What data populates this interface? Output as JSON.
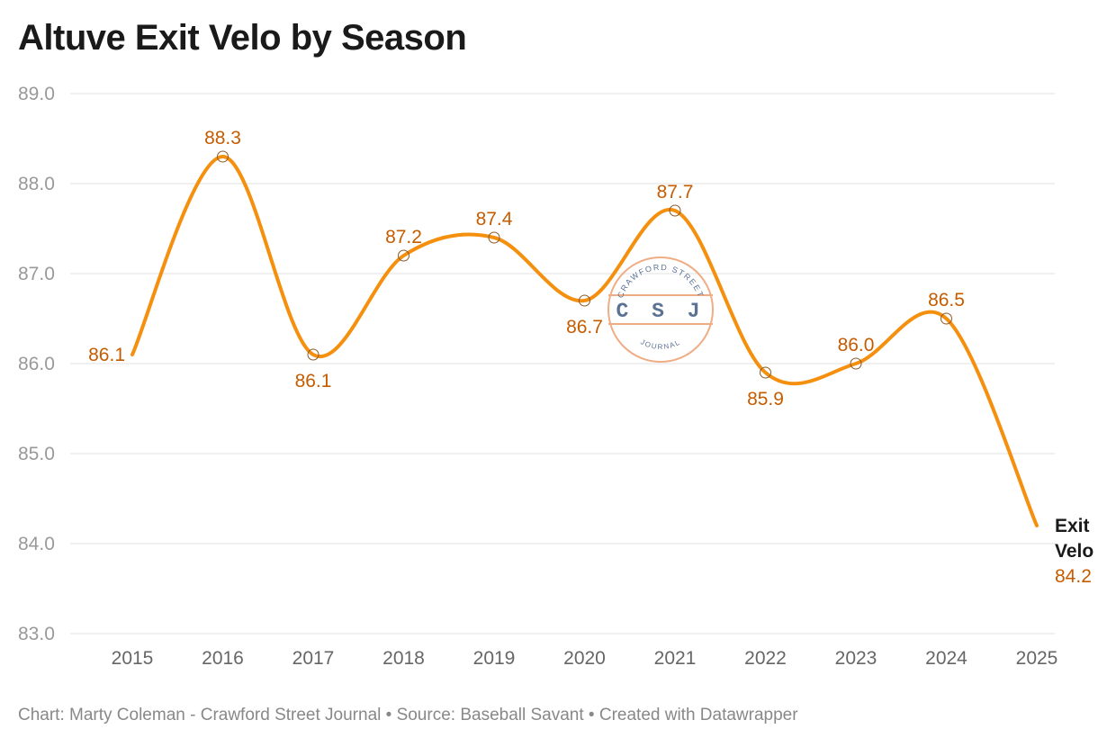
{
  "title": "Altuve Exit Velo by Season",
  "footer": "Chart: Marty Coleman - Crawford Street Journal • Source: Baseball Savant • Created with Datawrapper",
  "watermark": {
    "top_text": "CRAWFORD STREET",
    "center_text": "CSJ",
    "bottom_text": "JOURNAL"
  },
  "colors": {
    "line": "#f5900f",
    "label": "#c65c00",
    "grid": "#e2e2e2",
    "axis_text": "#999999",
    "series_label": "#1a1a1a",
    "watermark": "#f0ad85",
    "watermark_text": "#5b7293"
  },
  "chart_data": {
    "type": "line",
    "x": [
      2015,
      2016,
      2017,
      2018,
      2019,
      2020,
      2021,
      2022,
      2023,
      2024,
      2025
    ],
    "series": [
      {
        "name": "Exit Velo",
        "values": [
          86.1,
          88.3,
          86.1,
          87.2,
          87.4,
          86.7,
          87.7,
          85.9,
          86.0,
          86.5,
          84.2
        ],
        "value_labels": [
          "86.1",
          "88.3",
          "86.1",
          "87.2",
          "87.4",
          "86.7",
          "87.7",
          "85.9",
          "86.0",
          "86.5",
          "84.2"
        ]
      }
    ],
    "yticks": [
      "83.0",
      "84.0",
      "85.0",
      "86.0",
      "87.0",
      "88.0",
      "89.0"
    ],
    "ylim": [
      83,
      89
    ],
    "line_label": [
      "Exit",
      "Velo"
    ],
    "smooth": true,
    "grid": true,
    "legend": "none"
  }
}
